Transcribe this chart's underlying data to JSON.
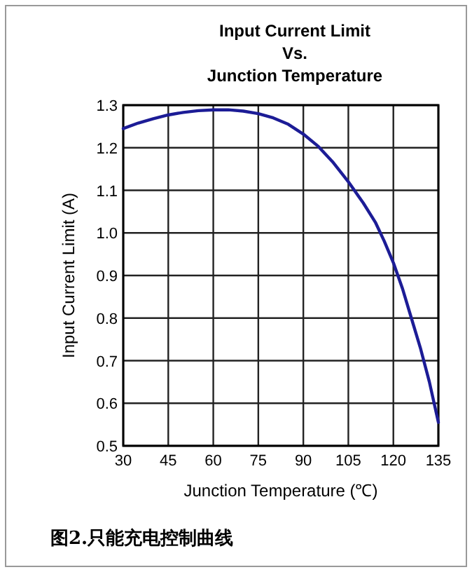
{
  "chart_data": {
    "type": "line",
    "title": "Input Current Limit\nVs.\nJunction Temperature",
    "xlabel": "Junction Temperature (℃)",
    "ylabel": "Input Current Limit (A)",
    "annotations": [
      "图2.只能充电控制曲线"
    ],
    "series": [
      {
        "color": "#1c1c96",
        "x": [
          30,
          35,
          40,
          45,
          50,
          55,
          60,
          65,
          70,
          75,
          80,
          85,
          90,
          95,
          100,
          105,
          110,
          114,
          117,
          120,
          123,
          126,
          129,
          132,
          135
        ],
        "values": [
          1.245,
          1.258,
          1.268,
          1.277,
          1.283,
          1.287,
          1.289,
          1.289,
          1.286,
          1.28,
          1.27,
          1.255,
          1.232,
          1.203,
          1.165,
          1.12,
          1.07,
          1.025,
          0.98,
          0.93,
          0.87,
          0.8,
          0.73,
          0.65,
          0.555
        ]
      }
    ],
    "xlim": [
      30,
      135
    ],
    "xticks": [
      30,
      45,
      60,
      75,
      90,
      105,
      120,
      135
    ],
    "ylim": [
      0.5,
      1.3
    ],
    "yticks": [
      0.5,
      0.6,
      0.7,
      0.8,
      0.9,
      {
        "value": 1,
        "label": "1.0"
      },
      1.1,
      1.2,
      1.3
    ],
    "grid": true,
    "line_style": "solid",
    "marker": "none"
  }
}
